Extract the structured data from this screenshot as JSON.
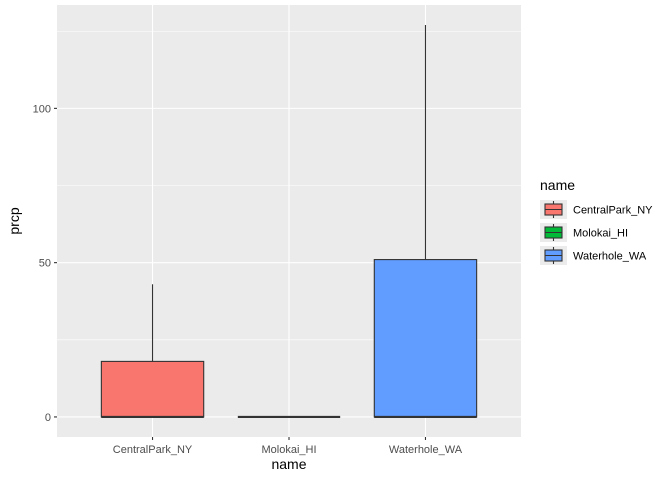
{
  "chart_data": {
    "type": "boxplot",
    "xlabel": "name",
    "ylabel": "prcp",
    "categories": [
      "CentralPark_NY",
      "Molokai_HI",
      "Waterhole_WA"
    ],
    "ylim": [
      -6.5,
      133.5
    ],
    "y_ticks": [
      0,
      50,
      100
    ],
    "grid": true,
    "legend": {
      "title": "name",
      "position": "right",
      "entries": [
        "CentralPark_NY",
        "Molokai_HI",
        "Waterhole_WA"
      ]
    },
    "colors": [
      "#F8766D",
      "#00BA38",
      "#619CFF"
    ],
    "boxes": [
      {
        "name": "CentralPark_NY",
        "lower_whisker": 0,
        "q1": 0,
        "median": 0,
        "q3": 18,
        "upper_whisker": 43
      },
      {
        "name": "Molokai_HI",
        "lower_whisker": 0,
        "q1": 0,
        "median": 0,
        "q3": 0,
        "upper_whisker": 0
      },
      {
        "name": "Waterhole_WA",
        "lower_whisker": 0,
        "q1": 0,
        "median": 0,
        "q3": 51,
        "upper_whisker": 127
      }
    ]
  }
}
